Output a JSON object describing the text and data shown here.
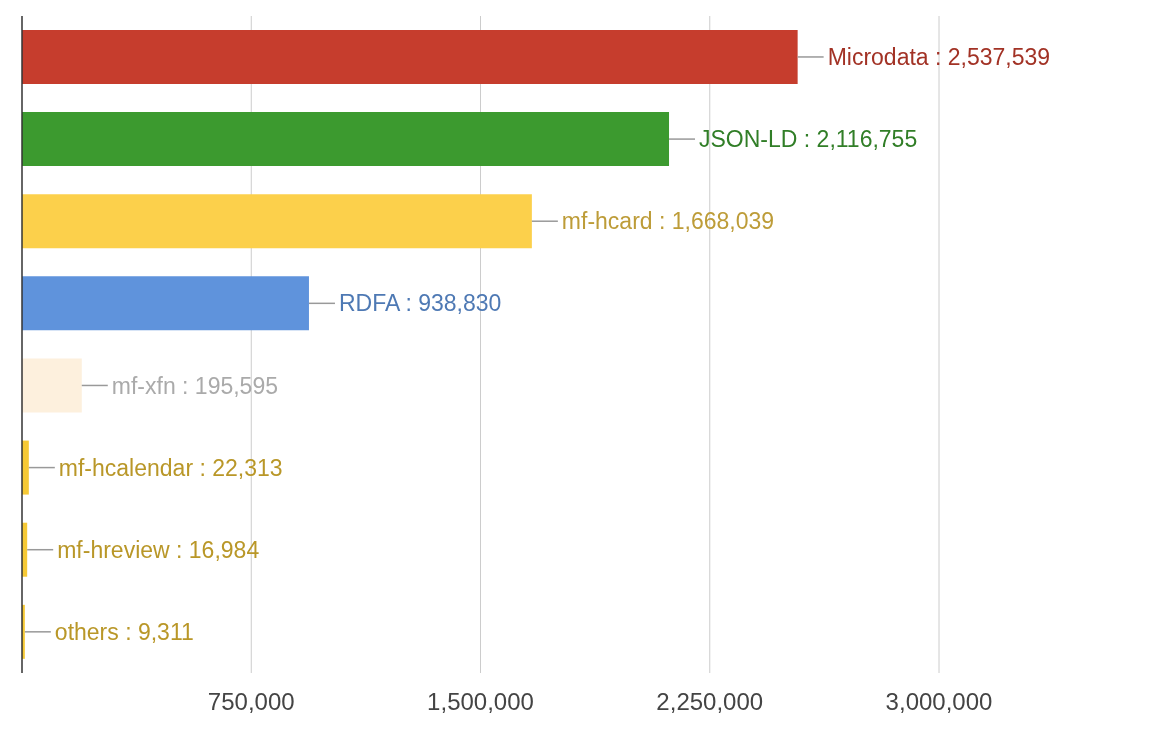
{
  "chart_data": {
    "type": "bar",
    "orientation": "horizontal",
    "categories": [
      null,
      null,
      null,
      null,
      null,
      null,
      null,
      null
    ],
    "values": [
      2537539,
      2116755,
      1668039,
      938830,
      195595,
      22313,
      16984,
      9311
    ],
    "colors": [
      "#c63d2d",
      "#3c9a2f",
      "#fcd04b",
      "#5f93dc",
      "#fdf0dd",
      "#f6c935",
      "#f6c935",
      "#f6c935"
    ],
    "value_labels": [
      "Microdata : 2,537,539",
      "JSON-LD : 2,116,755",
      "mf-hcard : 1,668,039",
      "RDFA : 938,830",
      "mf-xfn : 195,595",
      "mf-hcalendar : 22,313",
      "mf-hreview : 16,984",
      "others : 9,311"
    ],
    "xlim": [
      0,
      3000000
    ],
    "xticks": [
      {
        "value": 750000,
        "label": "750,000"
      },
      {
        "value": 1500000,
        "label": "1,500,000"
      },
      {
        "value": 2250000,
        "label": "2,250,000"
      },
      {
        "value": 3000000,
        "label": "3,000,000"
      }
    ],
    "grid": "x",
    "tick_labels": "x",
    "legend": false
  }
}
